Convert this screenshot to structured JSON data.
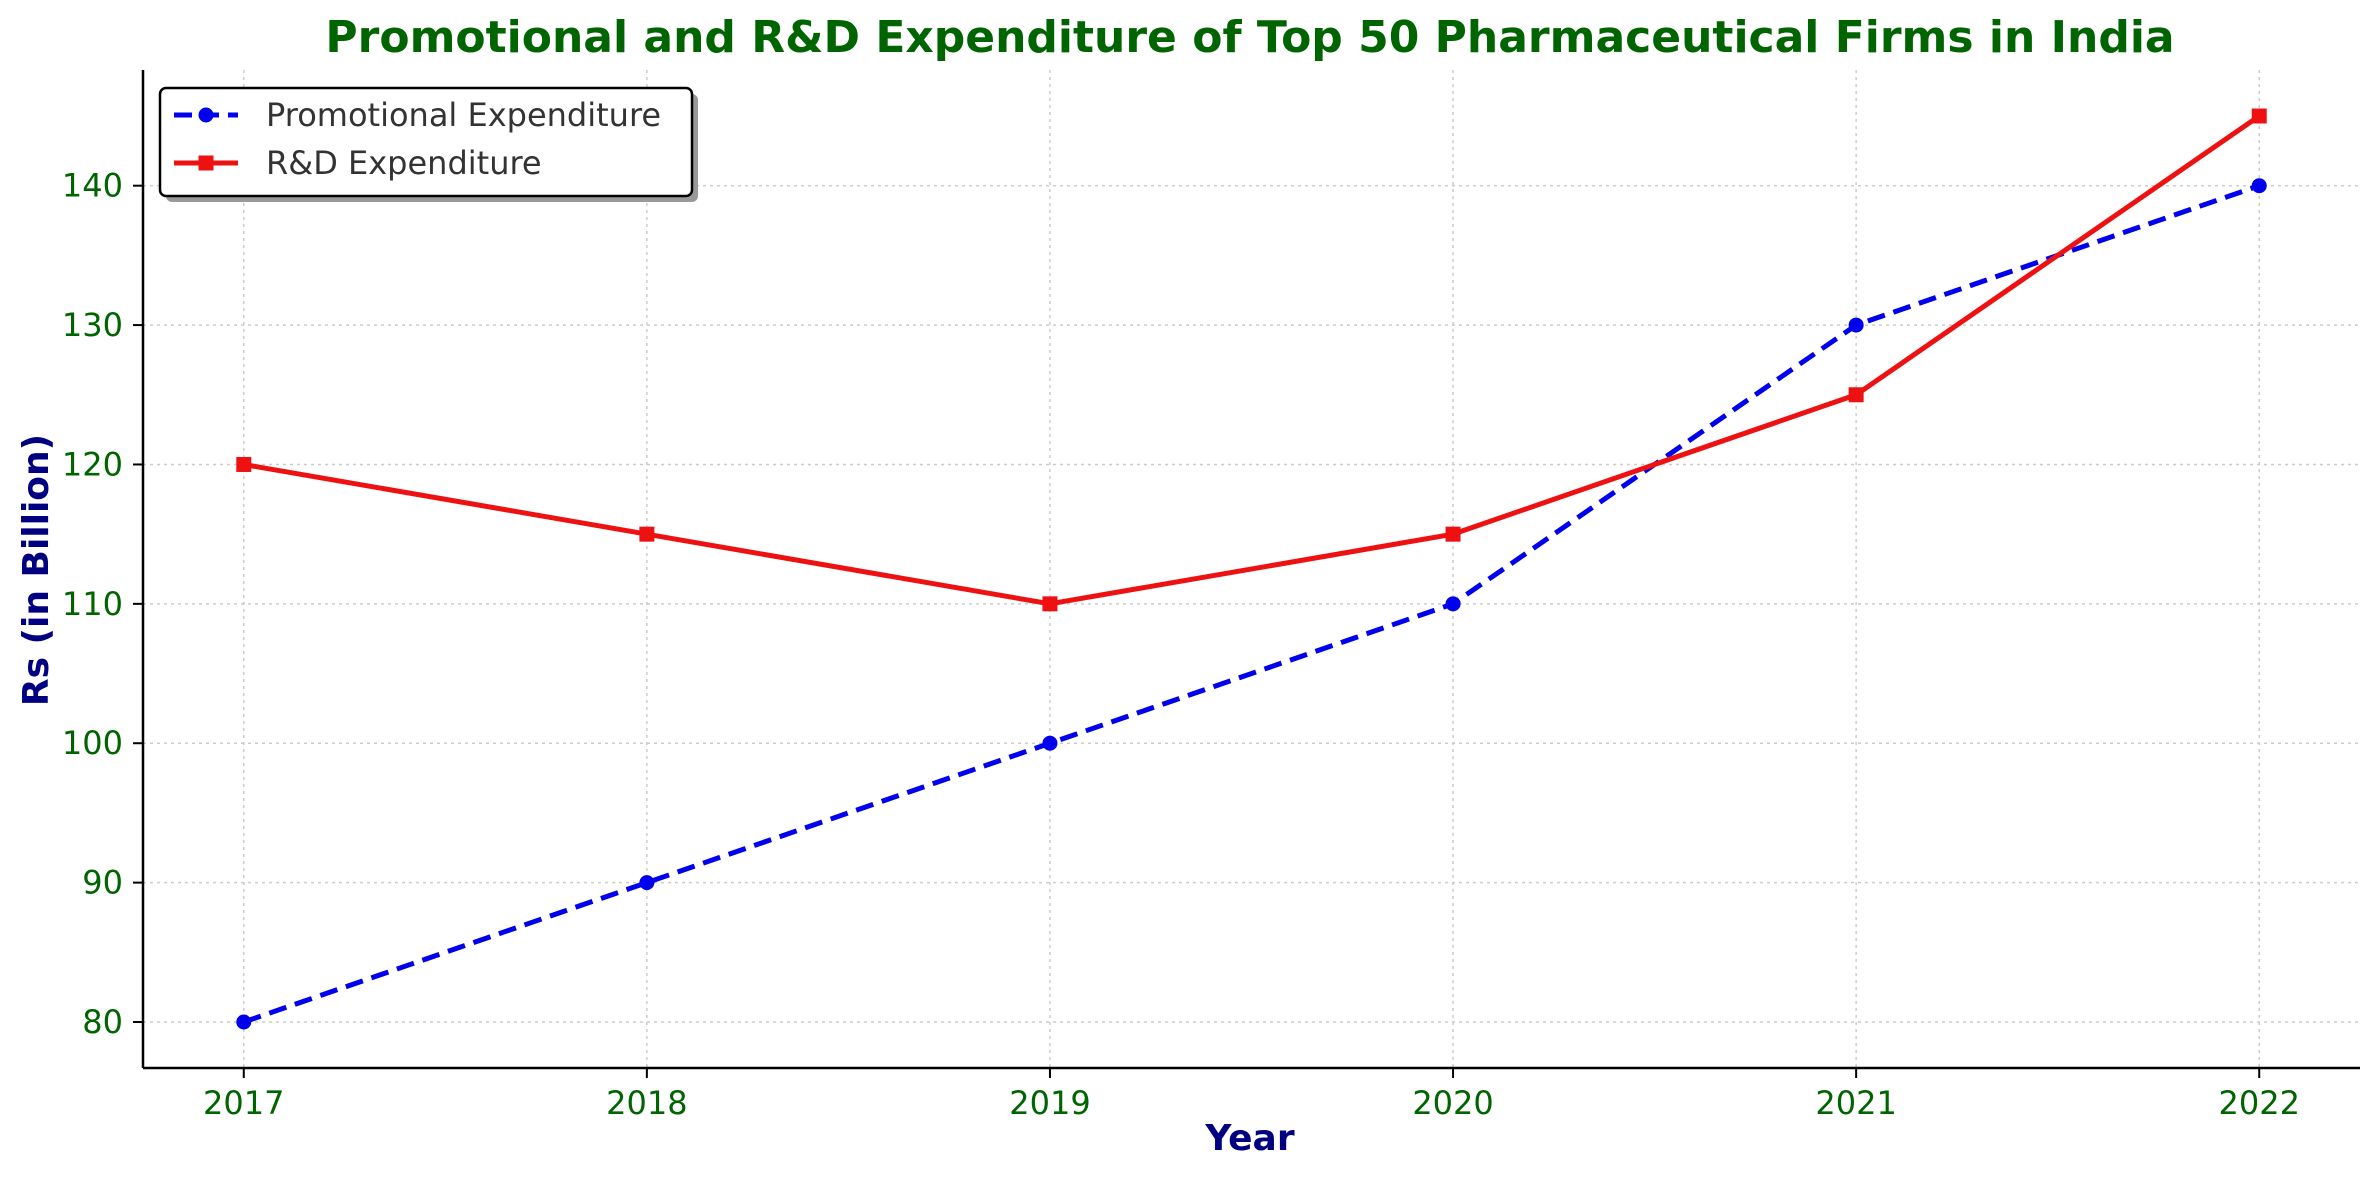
{
  "chart_data": {
    "type": "line",
    "title": "Promotional and R&D Expenditure of Top 50 Pharmaceutical Firms in India",
    "xlabel": "Year",
    "ylabel": "Rs (in Billion)",
    "x": [
      2017,
      2018,
      2019,
      2020,
      2021,
      2022
    ],
    "xlim": [
      2016.75,
      2022.25
    ],
    "ylim": [
      76.7,
      148.3
    ],
    "yticks": [
      80,
      90,
      100,
      110,
      120,
      130,
      140
    ],
    "grid": true,
    "legend_position": "top-left",
    "series": [
      {
        "name": "Promotional Expenditure",
        "values": [
          80,
          90,
          100,
          110,
          130,
          140
        ],
        "color": "#0000ee",
        "line_style": "dashed",
        "marker": "circle"
      },
      {
        "name": "R&D Expenditure",
        "values": [
          120,
          115,
          110,
          115,
          125,
          145
        ],
        "color": "#ee1111",
        "line_style": "solid",
        "marker": "square"
      }
    ]
  }
}
